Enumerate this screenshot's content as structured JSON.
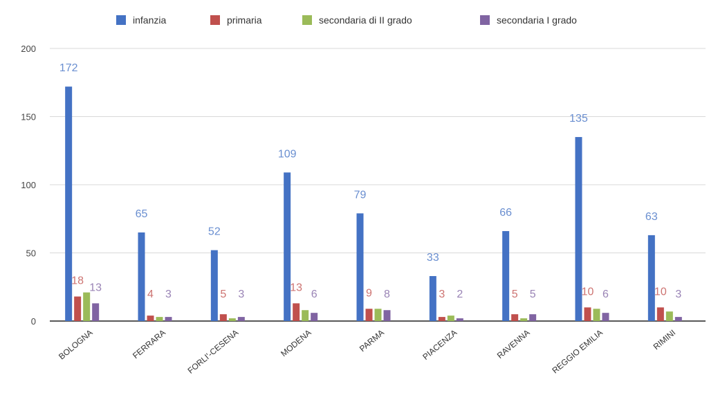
{
  "chart_data": {
    "type": "bar",
    "categories": [
      "BOLOGNA",
      "FERRARA",
      "FORLI'-CESENA",
      "MODENA",
      "PARMA",
      "PIACENZA",
      "RAVENNA",
      "REGGIO EMILIA",
      "RIMINI"
    ],
    "series": [
      {
        "name": "infanzia",
        "color": "#4472c4",
        "values": [
          172,
          65,
          52,
          109,
          79,
          33,
          66,
          135,
          63
        ],
        "labels": [
          "172",
          "65",
          "52",
          "109",
          "79",
          "33",
          "66",
          "135",
          "63"
        ]
      },
      {
        "name": "primaria",
        "color": "#c0504d",
        "values": [
          18,
          4,
          5,
          13,
          9,
          3,
          5,
          10,
          10
        ],
        "labels": [
          "18",
          "4",
          "5",
          "13",
          "9",
          "3",
          "5",
          "10",
          "10"
        ]
      },
      {
        "name": "secondaria di II grado",
        "color": "#9bbb59",
        "values": [
          21,
          3,
          2,
          8,
          9,
          4,
          2,
          9,
          7
        ],
        "labels": [
          "",
          "",
          "",
          "",
          "",
          "",
          "",
          "",
          ""
        ]
      },
      {
        "name": "secondaria I grado",
        "color": "#8064a2",
        "values": [
          13,
          3,
          3,
          6,
          8,
          2,
          5,
          6,
          3
        ],
        "labels": [
          "13",
          "3",
          "3",
          "6",
          "8",
          "2",
          "5",
          "6",
          "3"
        ]
      }
    ],
    "yticks": [
      "0",
      "50",
      "100",
      "150",
      "200"
    ],
    "ylim": [
      0,
      200
    ],
    "legend_position": "top",
    "grid": true
  }
}
